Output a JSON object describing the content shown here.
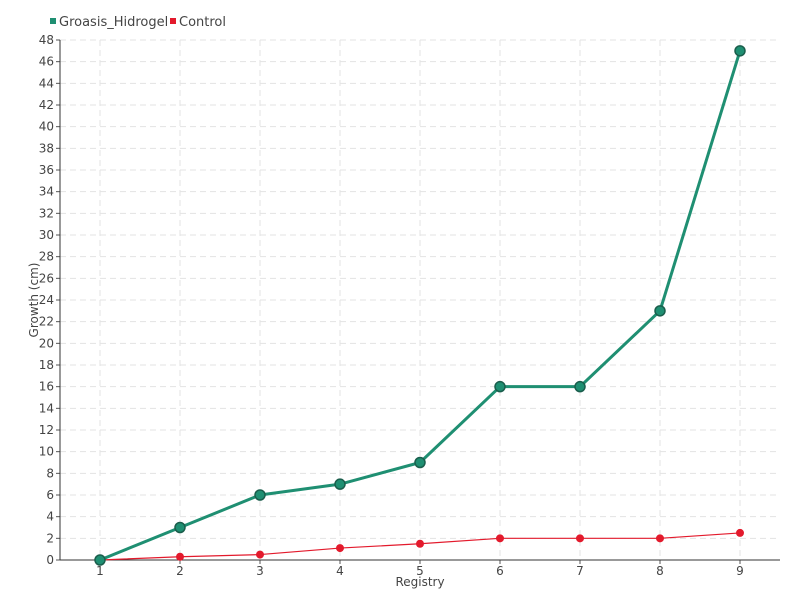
{
  "chart_data": {
    "type": "line",
    "title": "",
    "xlabel": "Registry",
    "ylabel": "Growth (cm)",
    "x": [
      1,
      2,
      3,
      4,
      5,
      6,
      7,
      8,
      9
    ],
    "ylim": [
      0,
      48
    ],
    "ytick_step": 2,
    "grid": true,
    "legend_position": "top-left",
    "series": [
      {
        "name": "Groasis_Hidrogel",
        "color": "#1f8f72",
        "values": [
          0,
          3,
          6,
          7,
          9,
          16,
          16,
          23,
          47
        ]
      },
      {
        "name": "Control",
        "color": "#e31a2c",
        "values": [
          0,
          0.3,
          0.5,
          1.1,
          1.5,
          2,
          2,
          2,
          2.5
        ]
      }
    ]
  }
}
